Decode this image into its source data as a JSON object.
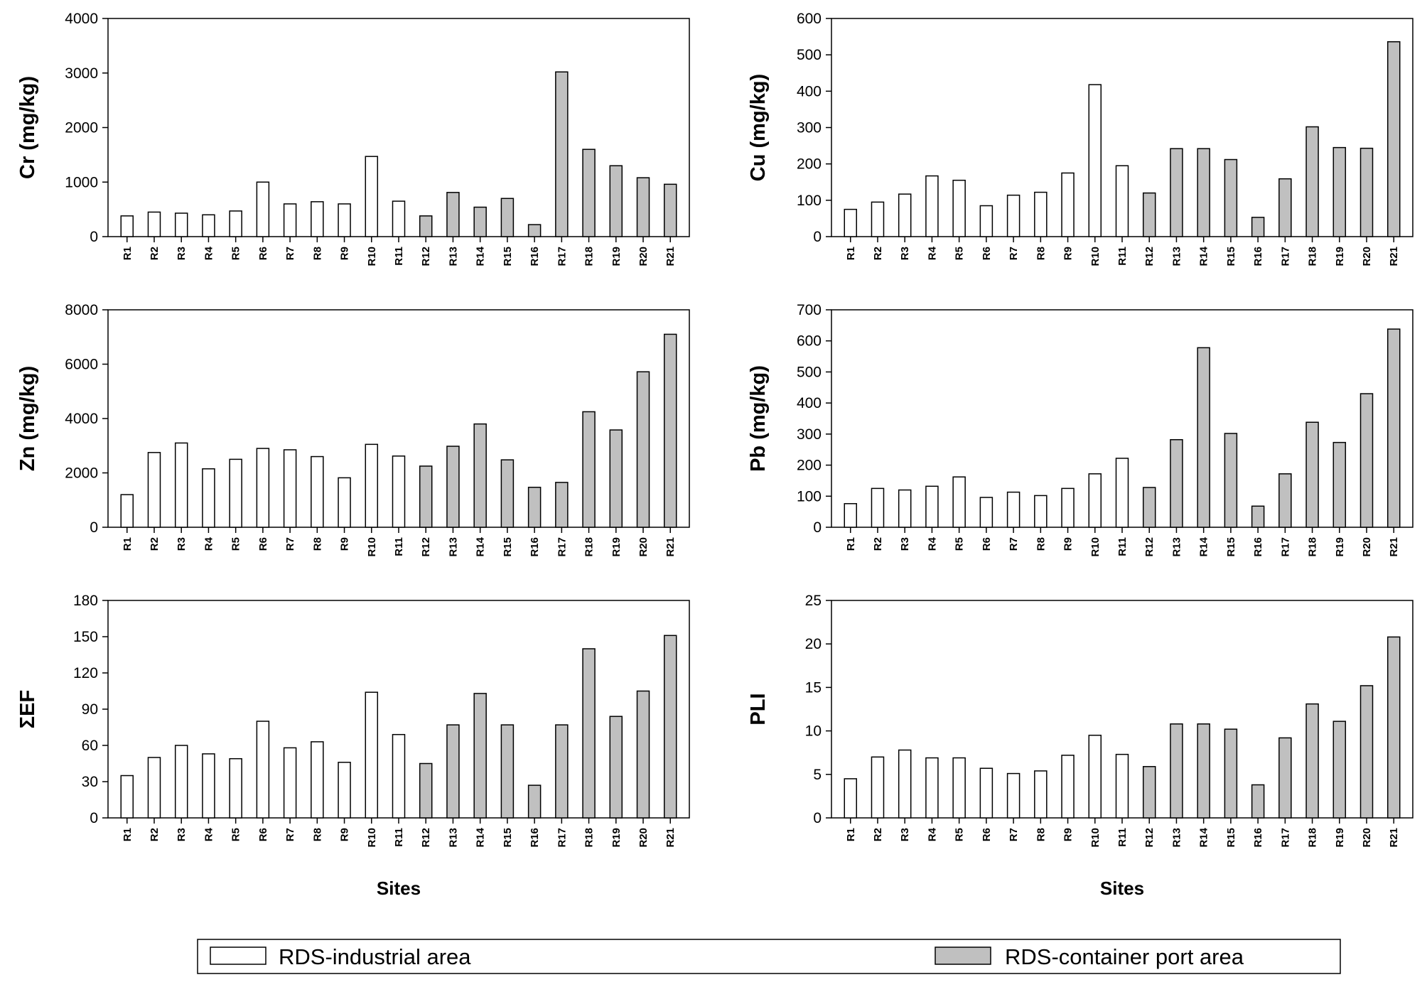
{
  "colors": {
    "industrial": "#ffffff",
    "port": "#c0c0c0",
    "stroke": "#000000"
  },
  "legend": {
    "items": [
      {
        "label": "RDS-industrial area",
        "color": "#ffffff"
      },
      {
        "label": "RDS-container port area",
        "color": "#c0c0c0"
      }
    ]
  },
  "chart_data": [
    {
      "type": "bar",
      "ylabel": "Cr (mg/kg)",
      "xlabel": "",
      "ylim": [
        0,
        4000
      ],
      "yticks": [
        0,
        1000,
        2000,
        3000,
        4000
      ],
      "categories": [
        "R1",
        "R2",
        "R3",
        "R4",
        "R5",
        "R6",
        "R7",
        "R8",
        "R9",
        "R10",
        "R11",
        "R12",
        "R13",
        "R14",
        "R15",
        "R16",
        "R17",
        "R18",
        "R19",
        "R20",
        "R21"
      ],
      "values": [
        380,
        450,
        430,
        400,
        470,
        1000,
        600,
        640,
        600,
        1470,
        650,
        380,
        810,
        540,
        700,
        220,
        3020,
        1600,
        1300,
        1080,
        960
      ],
      "groups": [
        "industrial",
        "industrial",
        "industrial",
        "industrial",
        "industrial",
        "industrial",
        "industrial",
        "industrial",
        "industrial",
        "industrial",
        "industrial",
        "port",
        "port",
        "port",
        "port",
        "port",
        "port",
        "port",
        "port",
        "port",
        "port"
      ]
    },
    {
      "type": "bar",
      "ylabel": "Cu (mg/kg)",
      "xlabel": "",
      "ylim": [
        0,
        600
      ],
      "yticks": [
        0,
        100,
        200,
        300,
        400,
        500,
        600
      ],
      "categories": [
        "R1",
        "R2",
        "R3",
        "R4",
        "R5",
        "R6",
        "R7",
        "R8",
        "R9",
        "R10",
        "R11",
        "R12",
        "R13",
        "R14",
        "R15",
        "R16",
        "R17",
        "R18",
        "R19",
        "R20",
        "R21"
      ],
      "values": [
        75,
        95,
        117,
        167,
        155,
        85,
        114,
        122,
        175,
        418,
        195,
        120,
        242,
        242,
        212,
        53,
        159,
        302,
        245,
        243,
        536
      ],
      "groups": [
        "industrial",
        "industrial",
        "industrial",
        "industrial",
        "industrial",
        "industrial",
        "industrial",
        "industrial",
        "industrial",
        "industrial",
        "industrial",
        "port",
        "port",
        "port",
        "port",
        "port",
        "port",
        "port",
        "port",
        "port",
        "port"
      ]
    },
    {
      "type": "bar",
      "ylabel": "Zn (mg/kg)",
      "xlabel": "",
      "ylim": [
        0,
        8000
      ],
      "yticks": [
        0,
        2000,
        4000,
        6000,
        8000
      ],
      "categories": [
        "R1",
        "R2",
        "R3",
        "R4",
        "R5",
        "R6",
        "R7",
        "R8",
        "R9",
        "R10",
        "R11",
        "R12",
        "R13",
        "R14",
        "R15",
        "R16",
        "R17",
        "R18",
        "R19",
        "R20",
        "R21"
      ],
      "values": [
        1200,
        2750,
        3100,
        2150,
        2500,
        2900,
        2850,
        2600,
        1820,
        3050,
        2620,
        2250,
        2980,
        3800,
        2480,
        1470,
        1650,
        4250,
        3580,
        5720,
        7100
      ],
      "groups": [
        "industrial",
        "industrial",
        "industrial",
        "industrial",
        "industrial",
        "industrial",
        "industrial",
        "industrial",
        "industrial",
        "industrial",
        "industrial",
        "port",
        "port",
        "port",
        "port",
        "port",
        "port",
        "port",
        "port",
        "port",
        "port"
      ]
    },
    {
      "type": "bar",
      "ylabel": "Pb (mg/kg)",
      "xlabel": "",
      "ylim": [
        0,
        700
      ],
      "yticks": [
        0,
        100,
        200,
        300,
        400,
        500,
        600,
        700
      ],
      "categories": [
        "R1",
        "R2",
        "R3",
        "R4",
        "R5",
        "R6",
        "R7",
        "R8",
        "R9",
        "R10",
        "R11",
        "R12",
        "R13",
        "R14",
        "R15",
        "R16",
        "R17",
        "R18",
        "R19",
        "R20",
        "R21"
      ],
      "values": [
        76,
        125,
        120,
        132,
        162,
        96,
        113,
        102,
        125,
        172,
        222,
        128,
        282,
        578,
        302,
        68,
        172,
        338,
        273,
        430,
        638
      ],
      "groups": [
        "industrial",
        "industrial",
        "industrial",
        "industrial",
        "industrial",
        "industrial",
        "industrial",
        "industrial",
        "industrial",
        "industrial",
        "industrial",
        "port",
        "port",
        "port",
        "port",
        "port",
        "port",
        "port",
        "port",
        "port",
        "port"
      ]
    },
    {
      "type": "bar",
      "ylabel": "ΣEF",
      "xlabel": "Sites",
      "ylim": [
        0,
        180
      ],
      "yticks": [
        0,
        30,
        60,
        90,
        120,
        150,
        180
      ],
      "categories": [
        "R1",
        "R2",
        "R3",
        "R4",
        "R5",
        "R6",
        "R7",
        "R8",
        "R9",
        "R10",
        "R11",
        "R12",
        "R13",
        "R14",
        "R15",
        "R16",
        "R17",
        "R18",
        "R19",
        "R20",
        "R21"
      ],
      "values": [
        35,
        50,
        60,
        53,
        49,
        80,
        58,
        63,
        46,
        104,
        69,
        45,
        77,
        103,
        77,
        27,
        77,
        140,
        84,
        105,
        151
      ],
      "groups": [
        "industrial",
        "industrial",
        "industrial",
        "industrial",
        "industrial",
        "industrial",
        "industrial",
        "industrial",
        "industrial",
        "industrial",
        "industrial",
        "port",
        "port",
        "port",
        "port",
        "port",
        "port",
        "port",
        "port",
        "port",
        "port"
      ]
    },
    {
      "type": "bar",
      "ylabel": "PLI",
      "xlabel": "Sites",
      "ylim": [
        0,
        25
      ],
      "yticks": [
        0,
        5,
        10,
        15,
        20,
        25
      ],
      "categories": [
        "R1",
        "R2",
        "R3",
        "R4",
        "R5",
        "R6",
        "R7",
        "R8",
        "R9",
        "R10",
        "R11",
        "R12",
        "R13",
        "R14",
        "R15",
        "R16",
        "R17",
        "R18",
        "R19",
        "R20",
        "R21"
      ],
      "values": [
        4.5,
        7.0,
        7.8,
        6.9,
        6.9,
        5.7,
        5.1,
        5.4,
        7.2,
        9.5,
        7.3,
        5.9,
        10.8,
        10.8,
        10.2,
        3.8,
        9.2,
        13.1,
        11.1,
        15.2,
        20.8
      ],
      "groups": [
        "industrial",
        "industrial",
        "industrial",
        "industrial",
        "industrial",
        "industrial",
        "industrial",
        "industrial",
        "industrial",
        "industrial",
        "industrial",
        "port",
        "port",
        "port",
        "port",
        "port",
        "port",
        "port",
        "port",
        "port",
        "port"
      ]
    }
  ]
}
